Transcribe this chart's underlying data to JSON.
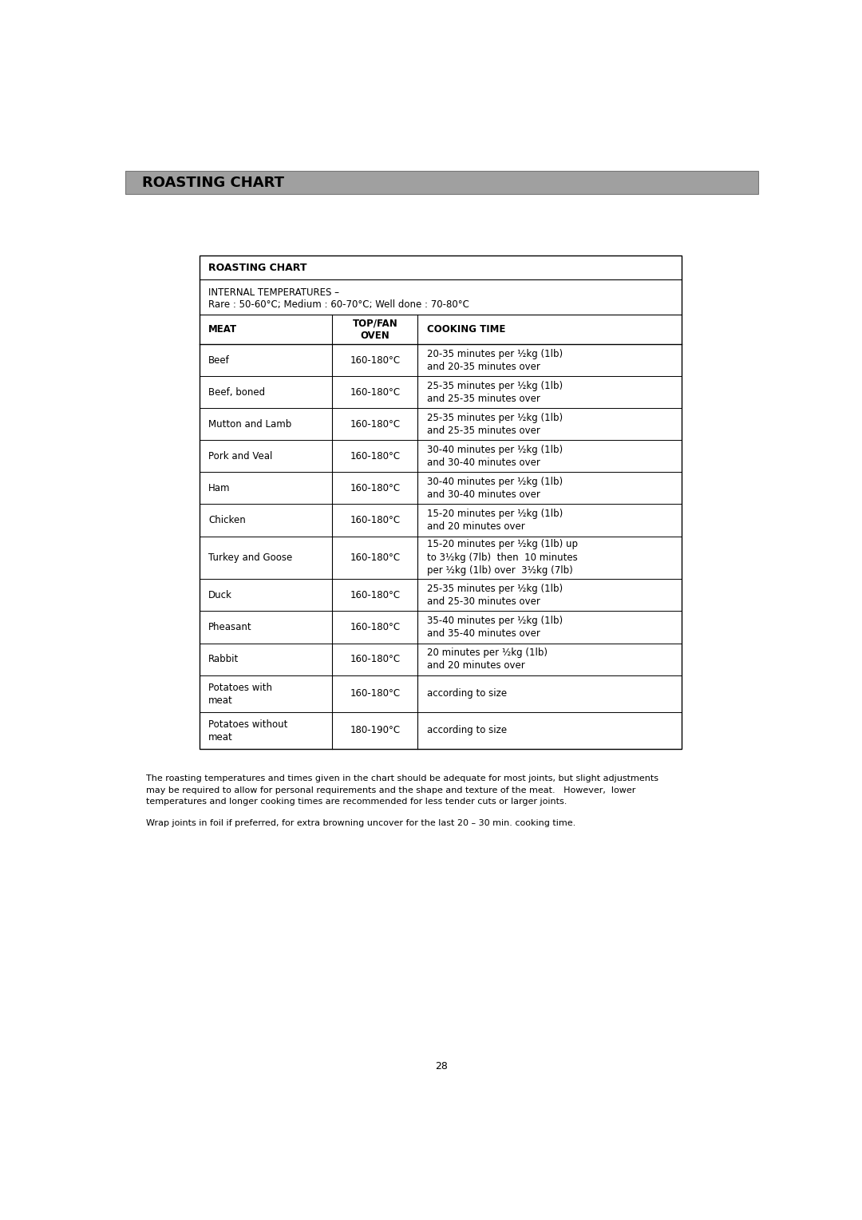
{
  "page_bg": "#ffffff",
  "header_bg": "#a0a0a0",
  "header_text": "ROASTING CHART",
  "header_text_color": "#000000",
  "table_title": "ROASTING CHART",
  "internal_temp_line1": "INTERNAL TEMPERATURES –",
  "internal_temp_line2": "Rare : 50-60°C; Medium : 60-70°C; Well done : 70-80°C",
  "col_headers": [
    "MEAT",
    "TOP/FAN\nOVEN",
    "COOKING TIME"
  ],
  "rows": [
    [
      "Beef",
      "160-180°C",
      "20-35 minutes per ½kg (1lb)\nand 20-35 minutes over"
    ],
    [
      "Beef, boned",
      "160-180°C",
      "25-35 minutes per ½kg (1lb)\nand 25-35 minutes over"
    ],
    [
      "Mutton and Lamb",
      "160-180°C",
      "25-35 minutes per ½kg (1lb)\nand 25-35 minutes over"
    ],
    [
      "Pork and Veal",
      "160-180°C",
      "30-40 minutes per ½kg (1lb)\nand 30-40 minutes over"
    ],
    [
      "Ham",
      "160-180°C",
      "30-40 minutes per ½kg (1lb)\nand 30-40 minutes over"
    ],
    [
      "Chicken",
      "160-180°C",
      "15-20 minutes per ½kg (1lb)\nand 20 minutes over"
    ],
    [
      "Turkey and Goose",
      "160-180°C",
      "15-20 minutes per ½kg (1lb) up\nto 3½kg (7lb)  then  10 minutes\nper ½kg (1lb) over  3½kg (7lb)"
    ],
    [
      "Duck",
      "160-180°C",
      "25-35 minutes per ½kg (1lb)\nand 25-30 minutes over"
    ],
    [
      "Pheasant",
      "160-180°C",
      "35-40 minutes per ½kg (1lb)\nand 35-40 minutes over"
    ],
    [
      "Rabbit",
      "160-180°C",
      "20 minutes per ½kg (1lb)\nand 20 minutes over"
    ],
    [
      "Potatoes with\nmeat",
      "160-180°C",
      "according to size"
    ],
    [
      "Potatoes without\nmeat",
      "180-190°C",
      "according to size"
    ]
  ],
  "footnote1": "The roasting temperatures and times given in the chart should be adequate for most joints, but slight adjustments\nmay be required to allow for personal requirements and the shape and texture of the meat.   However,  lower\ntemperatures and longer cooking times are recommended for less tender cuts or larger joints.",
  "footnote2": "Wrap joints in foil if preferred, for extra browning uncover for the last 20 – 30 min. cooking time.",
  "page_number": "28"
}
